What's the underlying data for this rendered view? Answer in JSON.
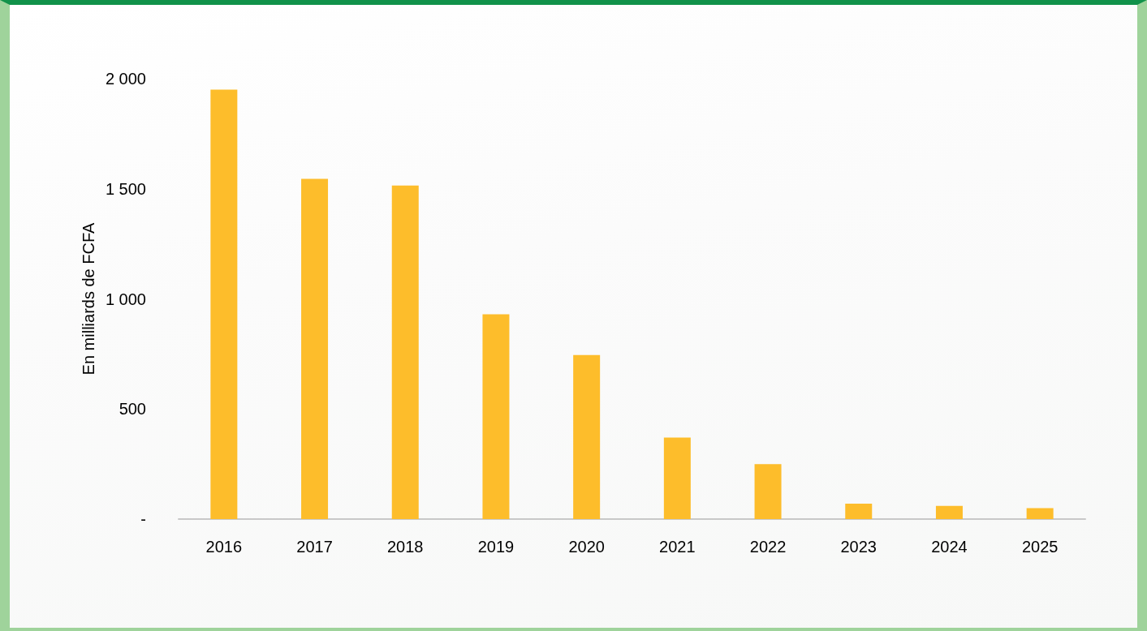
{
  "chart_data": {
    "type": "bar",
    "ylabel": "En milliards de FCFA",
    "categories": [
      "2016",
      "2017",
      "2018",
      "2019",
      "2020",
      "2021",
      "2022",
      "2023",
      "2024",
      "2025"
    ],
    "values": [
      1950,
      1545,
      1515,
      930,
      745,
      370,
      250,
      70,
      60,
      50
    ],
    "color": "#fdbd2b",
    "ylim": [
      0,
      2000
    ],
    "yticks": [
      {
        "value": 0,
        "label": "-"
      },
      500,
      {
        "value": 1000,
        "label": "1 000"
      },
      {
        "value": 1500,
        "label": "1 500"
      },
      {
        "value": 2000,
        "label": "2 000"
      }
    ],
    "grid": false
  }
}
